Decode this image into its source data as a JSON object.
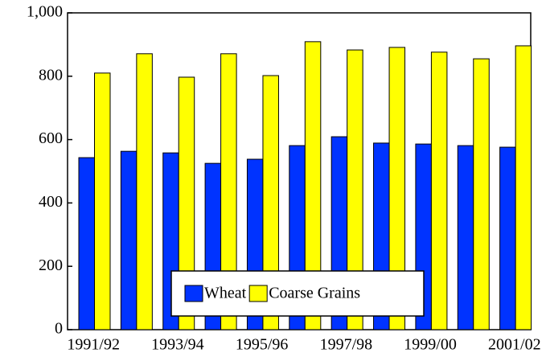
{
  "chart_data": {
    "type": "bar",
    "categories": [
      "1991/92",
      null,
      "1993/94",
      null,
      "1995/96",
      null,
      "1997/98",
      null,
      "1999/00",
      null,
      "2001/02"
    ],
    "series": [
      {
        "name": "Wheat",
        "color": "#0033ff",
        "values": [
          543,
          563,
          558,
          525,
          538,
          581,
          609,
          589,
          586,
          581,
          576
        ]
      },
      {
        "name": "Coarse Grains",
        "color": "#ffff00",
        "values": [
          810,
          871,
          797,
          871,
          802,
          909,
          883,
          891,
          876,
          855,
          896
        ]
      }
    ],
    "ylim": [
      0,
      1000
    ],
    "yticks": [
      0,
      200,
      400,
      600,
      800,
      {
        "value": 1000,
        "label": "1,000"
      }
    ],
    "grid": false,
    "legend": "bottom"
  }
}
